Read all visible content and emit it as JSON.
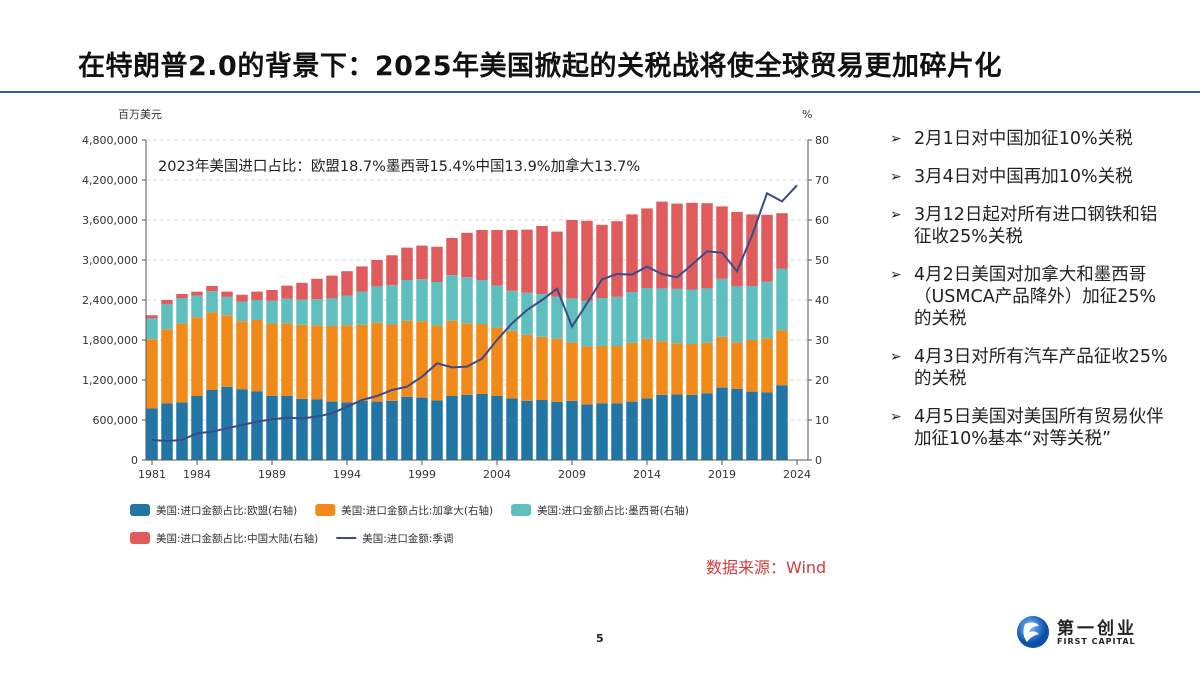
{
  "slide": {
    "title": "在特朗普2.0的背景下：2025年美国掀起的关税战将使全球贸易更加碎片化",
    "page_number": "5",
    "source": "数据来源：Wind",
    "logo": {
      "cn": "第一创业",
      "en": "FIRST CAPITAL"
    },
    "bullets": [
      "2月1日对中国加征10%关税",
      "3月4日对中国再加10%关税",
      "3月12日起对所有进口钢铁和铝征收25%关税",
      "4月2日美国对加拿大和墨西哥（USMCA产品降外）加征25%的关税",
      "4月3日对所有汽车产品征收25%的关税",
      "4月5日美国对美国所有贸易伙伴加征10%基本“对等关税”"
    ],
    "bullet_icon": "arrowhead-bullet-icon"
  },
  "chart_data": {
    "type": "bar",
    "stacked": true,
    "annotation": "2023年美国进口占比：欧盟18.7%墨西哥15.4%中国13.9%加拿大13.7%",
    "ylabel_left": "百万美元",
    "ylabel_right": "%",
    "ylim_left": [
      0,
      4800000
    ],
    "ylim_right": [
      0,
      80
    ],
    "yticks_left": [
      "0",
      "600,000",
      "1,200,000",
      "1,800,000",
      "2,400,000",
      "3,000,000",
      "3,600,000",
      "4,200,000",
      "4,800,000"
    ],
    "yticks_right": [
      "0",
      "10",
      "20",
      "30",
      "40",
      "50",
      "60",
      "70",
      "80"
    ],
    "xticks": [
      "1981",
      "1984",
      "1989",
      "1994",
      "1999",
      "2004",
      "2009",
      "2014",
      "2019",
      "2024"
    ],
    "grid": "horizontal dashed",
    "legend_position": "bottom",
    "categories": [
      1981,
      1982,
      1983,
      1984,
      1985,
      1986,
      1987,
      1988,
      1989,
      1990,
      1991,
      1992,
      1993,
      1994,
      1995,
      1996,
      1997,
      1998,
      1999,
      2000,
      2001,
      2002,
      2003,
      2004,
      2005,
      2006,
      2007,
      2008,
      2009,
      2010,
      2011,
      2012,
      2013,
      2014,
      2015,
      2016,
      2017,
      2018,
      2019,
      2020,
      2021,
      2022,
      2023
    ],
    "series": [
      {
        "name": "美国:进口金额占比:欧盟(右轴)",
        "axis": "right",
        "color": "#2276a6",
        "values": [
          12.9,
          14.2,
          14.4,
          16.0,
          17.5,
          18.3,
          17.7,
          17.2,
          16.0,
          16.0,
          15.3,
          15.2,
          14.6,
          14.4,
          14.8,
          14.6,
          14.8,
          15.8,
          15.6,
          14.9,
          16.0,
          16.3,
          16.5,
          16.0,
          15.4,
          14.8,
          15.0,
          14.5,
          14.8,
          13.9,
          14.2,
          14.2,
          14.6,
          15.4,
          16.3,
          16.4,
          16.3,
          16.7,
          18.1,
          17.8,
          17.1,
          16.9,
          18.7
        ]
      },
      {
        "name": "美国:进口金额占比:加拿大(右轴)",
        "axis": "right",
        "color": "#f28a1a",
        "values": [
          17.3,
          18.5,
          19.7,
          19.7,
          19.4,
          17.9,
          17.0,
          17.8,
          18.1,
          18.2,
          18.5,
          18.5,
          18.9,
          19.3,
          19.0,
          19.7,
          19.1,
          19.0,
          19.1,
          18.7,
          18.8,
          17.9,
          17.5,
          17.1,
          16.9,
          16.5,
          15.8,
          15.8,
          14.6,
          14.5,
          14.3,
          14.3,
          14.7,
          14.9,
          13.4,
          12.8,
          12.7,
          12.6,
          12.7,
          11.6,
          12.9,
          13.5,
          13.7
        ]
      },
      {
        "name": "美国:进口金额占比:墨西哥(右轴)",
        "axis": "right",
        "color": "#5fbfbf",
        "values": [
          5.2,
          6.3,
          6.4,
          5.4,
          5.3,
          4.6,
          4.9,
          5.0,
          5.7,
          6.1,
          6.3,
          6.5,
          6.9,
          7.4,
          8.3,
          9.1,
          9.8,
          10.2,
          10.5,
          10.9,
          11.4,
          11.5,
          11.0,
          10.5,
          10.0,
          10.5,
          10.7,
          10.5,
          11.0,
          11.4,
          12.0,
          12.3,
          12.7,
          12.7,
          13.2,
          13.6,
          13.6,
          13.6,
          14.5,
          14.0,
          13.5,
          14.2,
          15.4
        ]
      },
      {
        "name": "美国:进口金额占比:中国大陆(右轴)",
        "axis": "right",
        "color": "#e05c5c",
        "values": [
          0.8,
          1.0,
          1.0,
          1.0,
          1.3,
          1.3,
          1.7,
          2.1,
          2.7,
          3.3,
          4.2,
          5.1,
          5.7,
          6.1,
          6.3,
          6.6,
          7.5,
          8.1,
          8.4,
          8.8,
          9.3,
          11.1,
          12.5,
          13.9,
          15.2,
          15.8,
          17.0,
          16.3,
          19.6,
          20.0,
          18.3,
          18.9,
          19.4,
          19.9,
          21.7,
          21.3,
          21.7,
          21.3,
          18.1,
          18.6,
          17.9,
          16.7,
          13.9
        ]
      }
    ],
    "line": {
      "name": "美国:进口金额:季调",
      "axis": "left",
      "color": "#3d4a8a",
      "x": [
        1981,
        1982,
        1983,
        1984,
        1985,
        1986,
        1987,
        1988,
        1989,
        1990,
        1991,
        1992,
        1993,
        1994,
        1995,
        1996,
        1997,
        1998,
        1999,
        2000,
        2001,
        2002,
        2003,
        2004,
        2005,
        2006,
        2007,
        2008,
        2009,
        2010,
        2011,
        2012,
        2013,
        2014,
        2015,
        2016,
        2017,
        2018,
        2019,
        2020,
        2021,
        2022,
        2023,
        2024
      ],
      "values": [
        300000,
        285000,
        300000,
        400000,
        425000,
        475000,
        525000,
        575000,
        610000,
        635000,
        625000,
        650000,
        700000,
        800000,
        900000,
        960000,
        1050000,
        1100000,
        1250000,
        1450000,
        1390000,
        1400000,
        1520000,
        1800000,
        2050000,
        2250000,
        2400000,
        2570000,
        2000000,
        2350000,
        2710000,
        2790000,
        2780000,
        2900000,
        2790000,
        2740000,
        2930000,
        3130000,
        3110000,
        2830000,
        3370000,
        4000000,
        3880000,
        4120000
      ]
    }
  }
}
